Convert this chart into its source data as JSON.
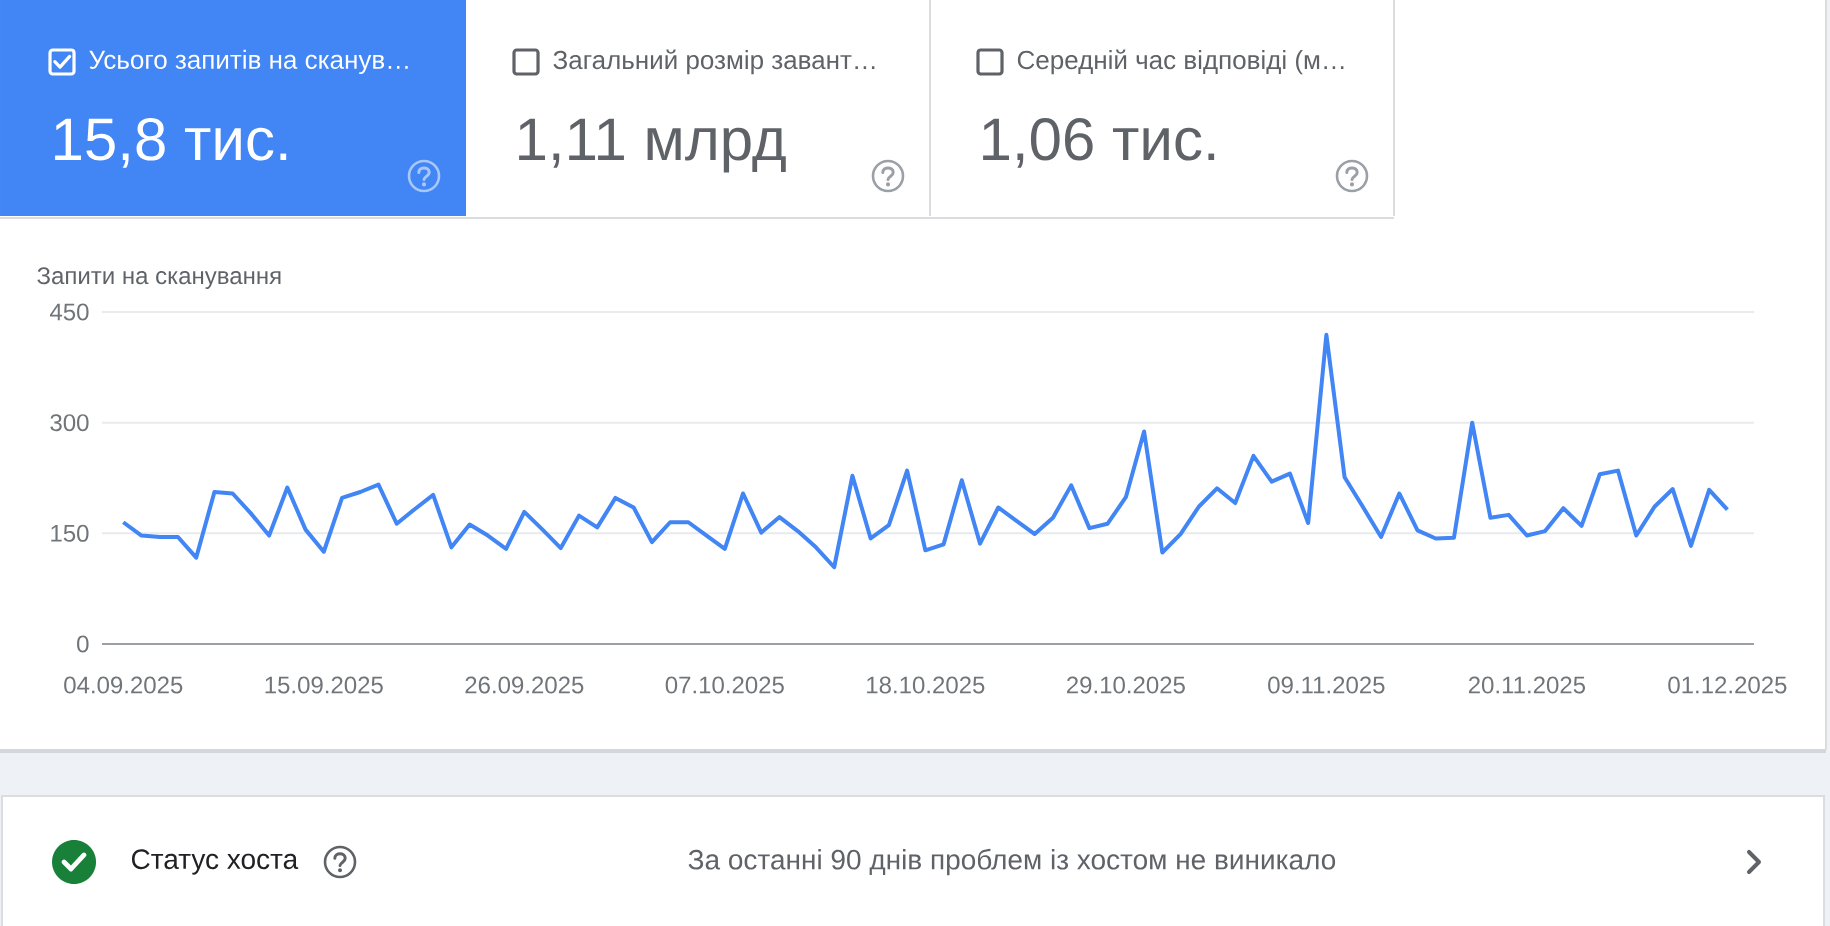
{
  "chart_data": [
    {
      "type": "other",
      "title": "Усього запитів на сканув…",
      "annotations": [
        "15,8 тис."
      ]
    },
    {
      "type": "other",
      "title": "Загальний розмір завант…",
      "annotations": [
        "1,11 млрд"
      ]
    },
    {
      "type": "other",
      "title": "Середній час відповіді (м…",
      "annotations": [
        "1,06 тис."
      ]
    },
    {
      "type": "line",
      "ylabel": "Запити на сканування",
      "color": "#4285f4",
      "grid": "y",
      "x": [
        "2025-09-04",
        "2025-09-05",
        "2025-09-06",
        "2025-09-07",
        "2025-09-08",
        "2025-09-09",
        "2025-09-10",
        "2025-09-11",
        "2025-09-12",
        "2025-09-13",
        "2025-09-14",
        "2025-09-15",
        "2025-09-16",
        "2025-09-17",
        "2025-09-18",
        "2025-09-19",
        "2025-09-20",
        "2025-09-21",
        "2025-09-22",
        "2025-09-23",
        "2025-09-24",
        "2025-09-25",
        "2025-09-26",
        "2025-09-27",
        "2025-09-28",
        "2025-09-29",
        "2025-09-30",
        "2025-10-01",
        "2025-10-02",
        "2025-10-03",
        "2025-10-04",
        "2025-10-05",
        "2025-10-06",
        "2025-10-07",
        "2025-10-08",
        "2025-10-09",
        "2025-10-10",
        "2025-10-11",
        "2025-10-12",
        "2025-10-13",
        "2025-10-14",
        "2025-10-15",
        "2025-10-16",
        "2025-10-17",
        "2025-10-18",
        "2025-10-19",
        "2025-10-20",
        "2025-10-21",
        "2025-10-22",
        "2025-10-23",
        "2025-10-24",
        "2025-10-25",
        "2025-10-26",
        "2025-10-27",
        "2025-10-28",
        "2025-10-29",
        "2025-10-30",
        "2025-10-31",
        "2025-11-01",
        "2025-11-02",
        "2025-11-03",
        "2025-11-04",
        "2025-11-05",
        "2025-11-06",
        "2025-11-07",
        "2025-11-08",
        "2025-11-09",
        "2025-11-10",
        "2025-11-11",
        "2025-11-12",
        "2025-11-13",
        "2025-11-14",
        "2025-11-15",
        "2025-11-16",
        "2025-11-17",
        "2025-11-18",
        "2025-11-19",
        "2025-11-20",
        "2025-11-21",
        "2025-11-22",
        "2025-11-23",
        "2025-11-24",
        "2025-11-25",
        "2025-11-26",
        "2025-11-27",
        "2025-11-28",
        "2025-11-29",
        "2025-11-30",
        "2025-12-01"
      ],
      "values": [
        165,
        147,
        145,
        145,
        117,
        206,
        204,
        177,
        147,
        212,
        155,
        125,
        198,
        206,
        216,
        163,
        183,
        202,
        131,
        162,
        147,
        129,
        179,
        155,
        130,
        174,
        158,
        198,
        185,
        138,
        165,
        165,
        147,
        129,
        204,
        151,
        172,
        153,
        131,
        104,
        228,
        143,
        161,
        235,
        127,
        135,
        222,
        136,
        185,
        167,
        149,
        171,
        215,
        157,
        163,
        199,
        288,
        124,
        149,
        186,
        211,
        191,
        255,
        220,
        231,
        164,
        419,
        226,
        186,
        145,
        204,
        154,
        143,
        144,
        300,
        171,
        175,
        147,
        153,
        184,
        160,
        230,
        235,
        147,
        186,
        210,
        133,
        209,
        182
      ],
      "xlim": [
        "2025-09-02T20:00",
        "2025-12-02T11:00"
      ],
      "ylim": [
        0,
        450
      ],
      "yticks": [
        0,
        150,
        300,
        450
      ],
      "xticks": [
        {
          "value": "2025-09-04",
          "label": "04.09.2025"
        },
        {
          "value": "2025-09-15",
          "label": "15.09.2025"
        },
        {
          "value": "2025-09-26",
          "label": "26.09.2025"
        },
        {
          "value": "2025-10-07",
          "label": "07.10.2025"
        },
        {
          "value": "2025-10-18",
          "label": "18.10.2025"
        },
        {
          "value": "2025-10-29",
          "label": "29.10.2025"
        },
        {
          "value": "2025-11-09",
          "label": "09.11.2025"
        },
        {
          "value": "2025-11-20",
          "label": "20.11.2025"
        },
        {
          "value": "2025-12-01",
          "label": "01.12.2025"
        }
      ]
    },
    {
      "type": "other",
      "title": "Статус хоста",
      "annotations": [
        "За останні 90 днів проблем із хостом не виникало"
      ]
    }
  ]
}
